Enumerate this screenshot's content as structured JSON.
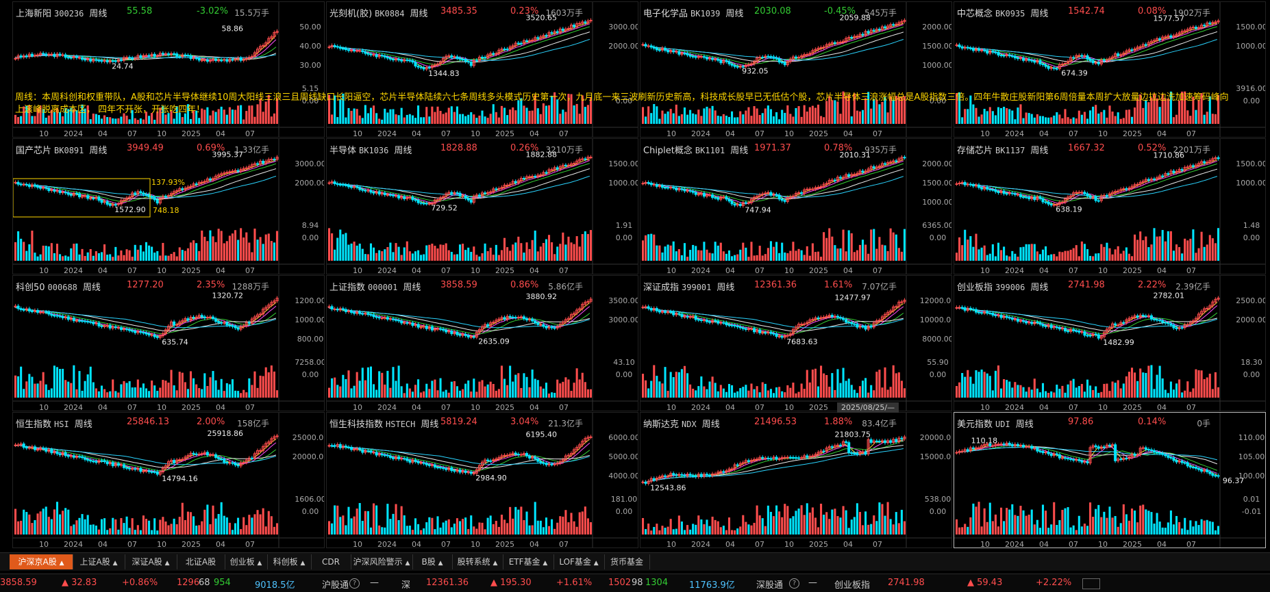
{
  "annotation": "周线：本周科创和权重带队，A股和芯片半导体继续10周大阳线三浪三且周线缺口长阳逼空，芯片半导体陆续六七条周线多头模式历史第一次，九月底一来三波刷新历史新高，科技成长股早已无低估个股，芯片半导体三浪涨幅总是A股指数三倍。四年牛散庄股新阳第6周倍量本周扩大放量边拉边洗加速筹码峰向上滚峰脱离成本区， 四年不开张，开张吃四年！",
  "date_tooltip": "2025/08/25/—",
  "x_labels": [
    "10",
    "2024",
    "04",
    "07",
    "10",
    "2025",
    "04",
    "07"
  ],
  "panels": [
    {
      "name": "上海新阳",
      "code": "300236",
      "period": "周线",
      "price": "55.58",
      "change": "-3.02%",
      "dir": "dn",
      "volunit": "15.5万手",
      "high": "58.86",
      "low": "24.74",
      "yticks": [
        "50.00",
        "40.00",
        "30.00"
      ],
      "vticks": [
        "5.15",
        "0.00"
      ],
      "trend": "up-late",
      "colors": {
        "line": "#eee"
      }
    },
    {
      "name": "光刻机(胶)",
      "code": "BK0884",
      "period": "周线",
      "price": "3485.35",
      "change": "0.23%",
      "dir": "up",
      "volunit": "1603万手",
      "high": "3520.65",
      "low": "1344.83",
      "yticks": [
        "3000.00",
        "2000.00"
      ],
      "vticks": [
        "",
        "0.00"
      ],
      "trend": "v"
    },
    {
      "name": "电子化学品",
      "code": "BK1039",
      "period": "周线",
      "price": "2030.08",
      "change": "-0.45%",
      "dir": "dn",
      "volunit": "545万手",
      "high": "2059.88",
      "low": "932.05",
      "yticks": [
        "2000.00",
        "1500.00",
        "1000.00"
      ],
      "vticks": [
        "",
        "0.00"
      ],
      "trend": "v"
    },
    {
      "name": "中芯概念",
      "code": "BK0935",
      "period": "周线",
      "price": "1542.74",
      "change": "0.08%",
      "dir": "up",
      "volunit": "1902万手",
      "high": "1577.57",
      "low": "674.39",
      "yticks": [
        "1500.00",
        "1000.00"
      ],
      "vticks": [
        "3916.00",
        "0.00"
      ],
      "trend": "v"
    },
    {
      "name": "国产芯片",
      "code": "BK0891",
      "period": "周线",
      "price": "3949.49",
      "change": "0.69%",
      "dir": "up",
      "volunit": "1.33亿手",
      "high": "3995.37",
      "low": "1572.90",
      "yticks": [
        "3000.00",
        "2000.00"
      ],
      "vticks": [
        "8.94",
        "0.00"
      ],
      "trend": "v",
      "box": {
        "pct": "137.93%",
        "base": "748.18"
      }
    },
    {
      "name": "半导体",
      "code": "BK1036",
      "period": "周线",
      "price": "1828.88",
      "change": "0.26%",
      "dir": "up",
      "volunit": "3210万手",
      "high": "1882.88",
      "low": "729.52",
      "yticks": [
        "1500.00",
        "1000.00"
      ],
      "vticks": [
        "1.91",
        "0.00"
      ],
      "trend": "v"
    },
    {
      "name": "Chiplet概念",
      "code": "BK1101",
      "period": "周线",
      "price": "1971.37",
      "change": "0.78%",
      "dir": "up",
      "volunit": "935万手",
      "high": "2010.31",
      "low": "747.94",
      "yticks": [
        "2000.00",
        "1500.00",
        "1000.00"
      ],
      "vticks": [
        "6365.00",
        "0.00"
      ],
      "trend": "v"
    },
    {
      "name": "存储芯片",
      "code": "BK1137",
      "period": "周线",
      "price": "1667.32",
      "change": "0.52%",
      "dir": "up",
      "volunit": "2201万手",
      "high": "1710.86",
      "low": "638.19",
      "yticks": [
        "1500.00",
        "1000.00"
      ],
      "vticks": [
        "1.48",
        "0.00"
      ],
      "trend": "v"
    },
    {
      "name": "科创50",
      "code": "000688",
      "period": "周线",
      "price": "1277.20",
      "change": "2.35%",
      "dir": "up",
      "volunit": "1288万手",
      "high": "1320.72",
      "low": "635.74",
      "yticks": [
        "1200.00",
        "1000.00",
        "800.00"
      ],
      "vticks": [
        "7258.00",
        "0.00"
      ],
      "trend": "down-v"
    },
    {
      "name": "上证指数",
      "code": "000001",
      "period": "周线",
      "price": "3858.59",
      "change": "0.86%",
      "dir": "up",
      "volunit": "5.86亿手",
      "high": "3880.92",
      "low": "2635.09",
      "yticks": [
        "3500.00",
        "3000.00"
      ],
      "vticks": [
        "43.10",
        "0.00"
      ],
      "trend": "down-v"
    },
    {
      "name": "深证成指",
      "code": "399001",
      "period": "周线",
      "price": "12361.36",
      "change": "1.61%",
      "dir": "up",
      "volunit": "7.07亿手",
      "high": "12477.97",
      "low": "7683.63",
      "yticks": [
        "12000.00",
        "10000.00",
        "8000.00"
      ],
      "vticks": [
        "55.90",
        "0.00"
      ],
      "trend": "down-v"
    },
    {
      "name": "创业板指",
      "code": "399006",
      "period": "周线",
      "price": "2741.98",
      "change": "2.22%",
      "dir": "up",
      "volunit": "2.39亿手",
      "high": "2782.01",
      "low": "1482.99",
      "yticks": [
        "2500.00",
        "2000.00"
      ],
      "vticks": [
        "18.30",
        "0.00"
      ],
      "trend": "down-v"
    },
    {
      "name": "恒生指数",
      "code": "HSI",
      "period": "周线",
      "price": "25846.13",
      "change": "2.00%",
      "dir": "up",
      "volunit": "158亿手",
      "high": "25918.86",
      "low": "14794.16",
      "yticks": [
        "25000.00",
        "20000.00"
      ],
      "vticks": [
        "1606.00",
        "0.00"
      ],
      "trend": "down-v"
    },
    {
      "name": "恒生科技指数",
      "code": "HSTECH",
      "period": "周线",
      "price": "5819.24",
      "change": "3.04%",
      "dir": "up",
      "volunit": "21.3亿手",
      "high": "6195.40",
      "low": "2984.90",
      "yticks": [
        "6000.00",
        "5000.00",
        "4000.00"
      ],
      "vticks": [
        "181.00",
        "0.00"
      ],
      "trend": "down-v"
    },
    {
      "name": "纳斯达克",
      "code": "NDX",
      "period": "周线",
      "price": "21496.53",
      "change": "1.88%",
      "dir": "up",
      "volunit": "83.4亿手",
      "high": "21803.75",
      "low": "12543.86",
      "yticks": [
        "20000.00",
        "15000.00"
      ],
      "vticks": [
        "538.00",
        "0.00"
      ],
      "trend": "rise"
    },
    {
      "name": "美元指数",
      "code": "UDI",
      "period": "周线",
      "price": "97.86",
      "change": "0.14%",
      "dir": "up",
      "volunit": "0手",
      "high": "110.18",
      "low": "96.37",
      "yticks": [
        "110.00",
        "105.00",
        "100.00"
      ],
      "vticks": [
        "0.01",
        "-0.01"
      ],
      "trend": "fall",
      "selected": true
    }
  ],
  "tabs": [
    {
      "label": "沪深京A股",
      "arrow": "▲",
      "active": true
    },
    {
      "label": "上证A股",
      "arrow": "▲"
    },
    {
      "label": "深证A股",
      "arrow": "▲"
    },
    {
      "label": "北证A股",
      "arrow": ""
    },
    {
      "label": "创业板",
      "arrow": "▲"
    },
    {
      "label": "科创板",
      "arrow": "▲"
    },
    {
      "label": "CDR",
      "arrow": ""
    },
    {
      "label": "沪深风险警示",
      "arrow": "▲"
    },
    {
      "label": "B股",
      "arrow": "▲"
    },
    {
      "label": "股转系统",
      "arrow": "▲"
    },
    {
      "label": "ETF基金",
      "arrow": "▲"
    },
    {
      "label": "LOF基金",
      "arrow": "▲"
    },
    {
      "label": "货币基金",
      "arrow": ""
    }
  ],
  "status": {
    "sh_index": "3858.59",
    "sh_change": "▲ 32.83",
    "sh_pct": "+0.86%",
    "sh_up": "1296",
    "sh_flat": "68",
    "sh_down": "954",
    "sh_amount": "9018.5亿",
    "hgt_label": "沪股通",
    "hgt_value": "—",
    "sz_label": "深",
    "sz_index": "12361.36",
    "sz_change": "▲ 195.30",
    "sz_pct": "+1.61%",
    "sz_up": "1502",
    "sz_flat": "98",
    "sz_down": "1304",
    "sz_amount": "11763.9亿",
    "sgt_label": "深股通",
    "sgt_value": "—",
    "cyb_label": "创业板指",
    "cyb_index": "2741.98",
    "cyb_change": "▲ 59.43",
    "cyb_pct": "+2.22%"
  },
  "colors": {
    "up": "#ff4d4d",
    "down": "#33cc33",
    "accent": "#e05a1b",
    "annotation": "#ffd700",
    "volume_cyan": "#00e5ff"
  }
}
